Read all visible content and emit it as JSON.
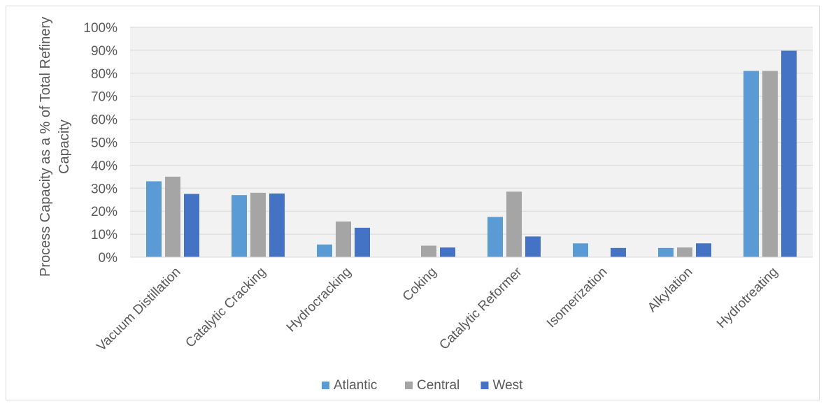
{
  "chart_data": {
    "type": "bar",
    "title": "",
    "xlabel": "",
    "ylabel_lines": [
      "Process Capacity as a % of Total Refinery",
      "Capacity"
    ],
    "ylim": [
      0,
      100
    ],
    "ytick_step": 10,
    "ytick_suffix": "%",
    "grid": true,
    "legend_position": "bottom",
    "categories": [
      "Vacuum Distillation",
      "Catalytic Cracking",
      "Hydrocracking",
      "Coking",
      "Catalytic Reformer",
      "Isomerization",
      "Alkylation",
      "Hydrotreating"
    ],
    "series": [
      {
        "name": "Atlantic",
        "color": "#5B9BD5",
        "values": [
          33,
          27,
          5.5,
          0,
          17.5,
          6,
          4,
          81
        ]
      },
      {
        "name": "Central",
        "color": "#A5A5A5",
        "values": [
          35,
          28,
          15.5,
          5,
          28.5,
          0,
          4.2,
          81
        ]
      },
      {
        "name": "West",
        "color": "#4472C4",
        "values": [
          27.5,
          27.7,
          12.8,
          4.2,
          9,
          4,
          6,
          89.8
        ]
      }
    ]
  }
}
